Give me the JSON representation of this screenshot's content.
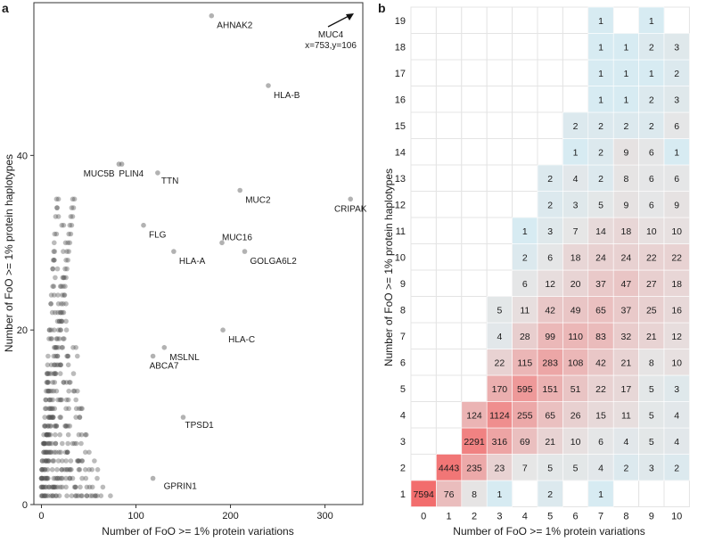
{
  "chart_data": [
    {
      "panel": "a",
      "type": "scatter",
      "title": "",
      "xlabel": "Number of FoO >= 1% protein variations",
      "ylabel": "Number of FoO >= 1% protein haplotypes",
      "xlim": [
        -8,
        340
      ],
      "ylim": [
        0,
        57.5
      ],
      "xticks": [
        0,
        100,
        200,
        300
      ],
      "yticks": [
        0,
        20,
        40
      ],
      "grid": false,
      "point_color": "#555555",
      "labeled_points": [
        {
          "name": "AHNAK2",
          "x": 180,
          "y": 56
        },
        {
          "name": "HLA-B",
          "x": 240,
          "y": 48
        },
        {
          "name": "MUC5B",
          "x": 85,
          "y": 39
        },
        {
          "name": "PLIN4",
          "x": 82,
          "y": 39
        },
        {
          "name": "TTN",
          "x": 123,
          "y": 38
        },
        {
          "name": "MUC2",
          "x": 210,
          "y": 36
        },
        {
          "name": "CRIPAK",
          "x": 327,
          "y": 35
        },
        {
          "name": "FLG",
          "x": 108,
          "y": 32
        },
        {
          "name": "MUC16",
          "x": 191,
          "y": 30
        },
        {
          "name": "HLA-A",
          "x": 140,
          "y": 29
        },
        {
          "name": "GOLGA6L2",
          "x": 215,
          "y": 29
        },
        {
          "name": "HLA-C",
          "x": 192,
          "y": 20
        },
        {
          "name": "MSLNL",
          "x": 130,
          "y": 18
        },
        {
          "name": "ABCA7",
          "x": 118,
          "y": 17
        },
        {
          "name": "TPSD1",
          "x": 150,
          "y": 10
        },
        {
          "name": "GPRIN1",
          "x": 118,
          "y": 3
        }
      ],
      "offscale_annotation": {
        "name": "MUC4",
        "text": "x=753,y=106"
      }
    },
    {
      "panel": "b",
      "type": "heatmap",
      "title": "",
      "xlabel": "Number of FoO >= 1% protein variations",
      "ylabel": "Number of FoO >= 1% protein haplotypes",
      "x": [
        0,
        1,
        2,
        3,
        4,
        5,
        6,
        7,
        8,
        9,
        10
      ],
      "y": [
        1,
        2,
        3,
        4,
        5,
        6,
        7,
        8,
        9,
        10,
        11,
        12,
        13,
        14,
        15,
        16,
        17,
        18,
        19
      ],
      "color_low": "#d7ebf2",
      "color_mid": "#e6e6e6",
      "color_high": "#f26d6d",
      "rows": [
        {
          "y": 1,
          "values": [
            7594,
            76,
            8,
            1,
            null,
            2,
            null,
            1,
            null,
            null,
            null
          ]
        },
        {
          "y": 2,
          "values": [
            null,
            4443,
            235,
            23,
            7,
            5,
            5,
            4,
            2,
            3,
            2
          ]
        },
        {
          "y": 3,
          "values": [
            null,
            null,
            2291,
            316,
            69,
            21,
            10,
            6,
            4,
            5,
            4
          ]
        },
        {
          "y": 4,
          "values": [
            null,
            null,
            124,
            1124,
            255,
            65,
            26,
            15,
            11,
            5,
            4
          ]
        },
        {
          "y": 5,
          "values": [
            null,
            null,
            null,
            170,
            595,
            151,
            51,
            22,
            17,
            5,
            3
          ]
        },
        {
          "y": 6,
          "values": [
            null,
            null,
            null,
            22,
            115,
            283,
            108,
            42,
            21,
            8,
            10
          ]
        },
        {
          "y": 7,
          "values": [
            null,
            null,
            null,
            4,
            28,
            99,
            110,
            83,
            32,
            21,
            12
          ]
        },
        {
          "y": 8,
          "values": [
            null,
            null,
            null,
            5,
            11,
            42,
            49,
            65,
            37,
            25,
            16
          ]
        },
        {
          "y": 9,
          "values": [
            null,
            null,
            null,
            null,
            6,
            12,
            20,
            37,
            47,
            27,
            18
          ]
        },
        {
          "y": 10,
          "values": [
            null,
            null,
            null,
            null,
            2,
            6,
            18,
            24,
            24,
            22,
            22
          ]
        },
        {
          "y": 11,
          "values": [
            null,
            null,
            null,
            null,
            1,
            3,
            7,
            14,
            18,
            10,
            10
          ]
        },
        {
          "y": 12,
          "values": [
            null,
            null,
            null,
            null,
            null,
            2,
            3,
            5,
            9,
            6,
            9
          ]
        },
        {
          "y": 13,
          "values": [
            null,
            null,
            null,
            null,
            null,
            2,
            4,
            2,
            8,
            6,
            6
          ]
        },
        {
          "y": 14,
          "values": [
            null,
            null,
            null,
            null,
            null,
            null,
            1,
            2,
            9,
            6,
            1
          ]
        },
        {
          "y": 15,
          "values": [
            null,
            null,
            null,
            null,
            null,
            null,
            2,
            2,
            2,
            2,
            6
          ]
        },
        {
          "y": 16,
          "values": [
            null,
            null,
            null,
            null,
            null,
            null,
            null,
            1,
            1,
            2,
            3
          ]
        },
        {
          "y": 17,
          "values": [
            null,
            null,
            null,
            null,
            null,
            null,
            null,
            1,
            1,
            1,
            2
          ]
        },
        {
          "y": 18,
          "values": [
            null,
            null,
            null,
            null,
            null,
            null,
            null,
            1,
            1,
            2,
            3
          ]
        },
        {
          "y": 19,
          "values": [
            null,
            null,
            null,
            null,
            null,
            null,
            null,
            1,
            null,
            1,
            null
          ]
        }
      ]
    }
  ]
}
